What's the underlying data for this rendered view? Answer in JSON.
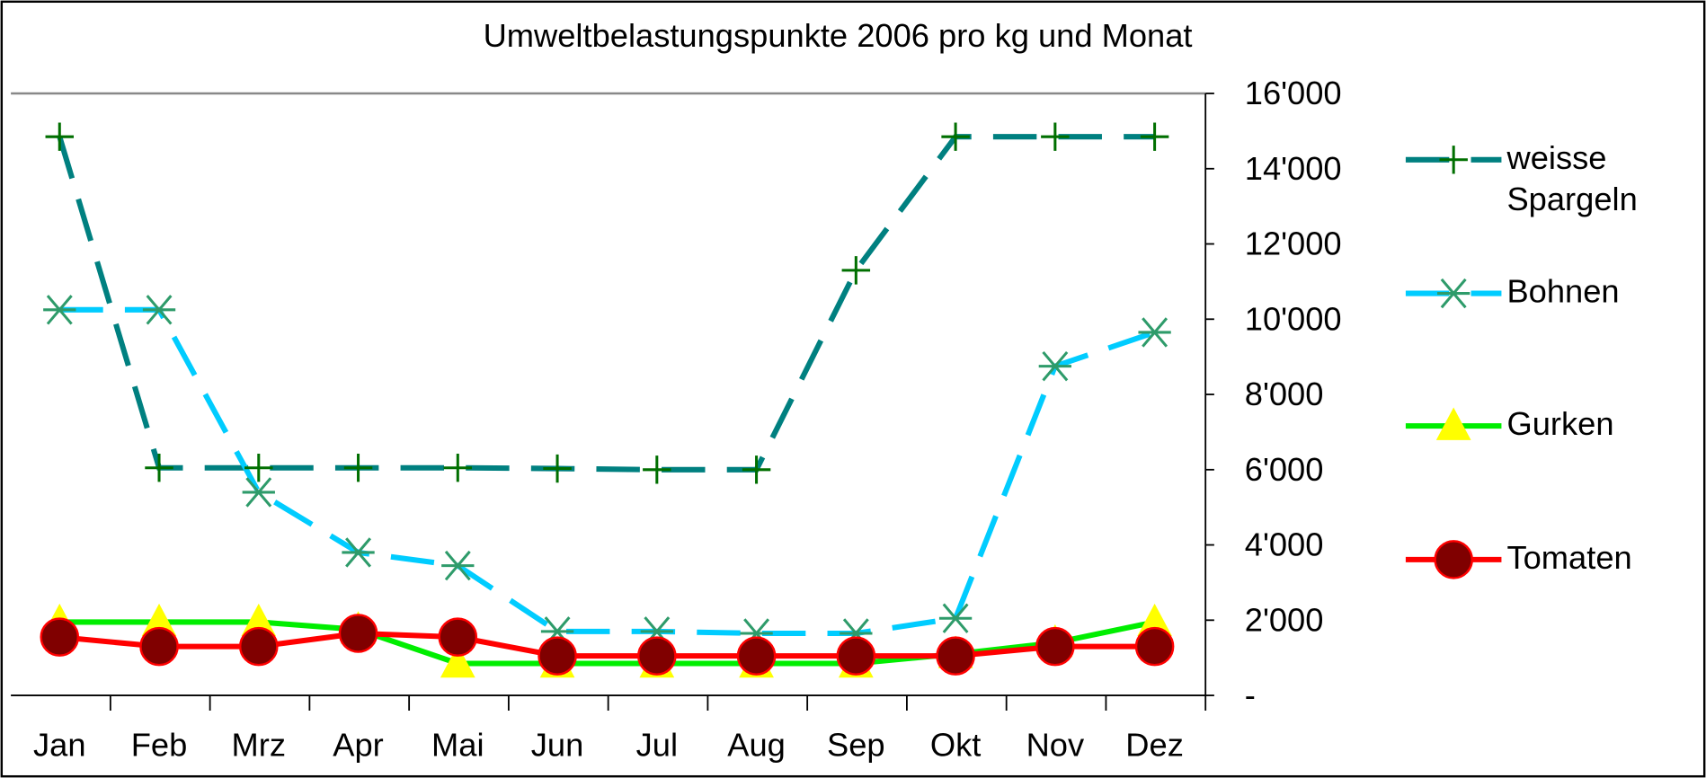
{
  "chart_data": {
    "type": "line",
    "title": "Umweltbelastungspunkte 2006 pro kg und Monat",
    "categories": [
      "Jan",
      "Feb",
      "Mrz",
      "Apr",
      "Mai",
      "Jun",
      "Jul",
      "Aug",
      "Sep",
      "Okt",
      "Nov",
      "Dez"
    ],
    "series": [
      {
        "name": "weisse Spargeln",
        "color": "#008080",
        "marker_color": "#006f00",
        "marker": "plus",
        "dashed": true,
        "values": [
          14850,
          6050,
          6050,
          6050,
          6050,
          6030,
          6000,
          6000,
          11300,
          14850,
          14850,
          14850
        ]
      },
      {
        "name": "Bohnen",
        "color": "#00ccff",
        "marker_color": "#2e9b6a",
        "marker": "star",
        "dashed": true,
        "values": [
          10250,
          10250,
          5400,
          3800,
          3450,
          1700,
          1700,
          1650,
          1650,
          2050,
          8750,
          9650
        ]
      },
      {
        "name": "Gurken",
        "color": "#00ee00",
        "marker_color": "#ffff00",
        "marker": "triangle",
        "dashed": false,
        "values": [
          1950,
          1950,
          1950,
          1750,
          850,
          850,
          850,
          850,
          850,
          1100,
          1400,
          1950
        ]
      },
      {
        "name": "Tomaten",
        "color": "#ff0000",
        "marker_color": "#800000",
        "marker": "circle",
        "dashed": false,
        "values": [
          1550,
          1300,
          1300,
          1650,
          1550,
          1050,
          1050,
          1050,
          1050,
          1050,
          1300,
          1300
        ]
      }
    ],
    "ylim": [
      0,
      16000
    ],
    "yticks": [
      {
        "value": 0,
        "label": "-"
      },
      {
        "value": 2000,
        "label": "2'000"
      },
      {
        "value": 4000,
        "label": "4'000"
      },
      {
        "value": 6000,
        "label": "6'000"
      },
      {
        "value": 8000,
        "label": "8'000"
      },
      {
        "value": 10000,
        "label": "10'000"
      },
      {
        "value": 12000,
        "label": "12'000"
      },
      {
        "value": 14000,
        "label": "14'000"
      },
      {
        "value": 16000,
        "label": "16'000"
      }
    ],
    "y_axis_side": "right",
    "legend": "right",
    "grid": false
  }
}
